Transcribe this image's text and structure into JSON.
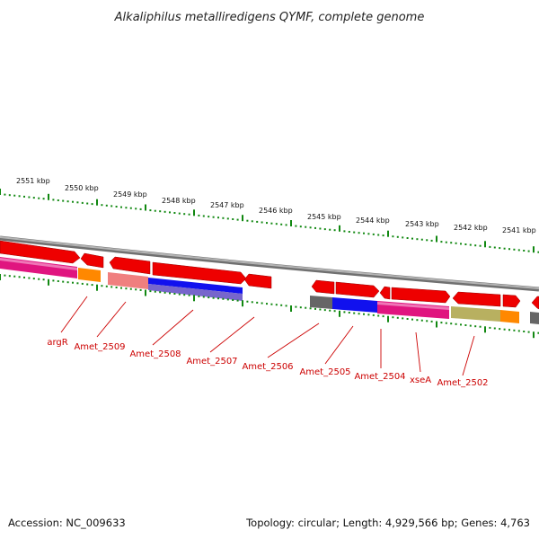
{
  "title": "Alkaliphilus metalliredigens QYMF, complete genome",
  "footer": {
    "accession": "Accession: NC_009633",
    "topology": "Topology: circular; Length: 4,929,566 bp; Genes: 4,763"
  },
  "colors": {
    "gene_arrow": "#ee0000",
    "ruler_tick": "#118811",
    "backbone": "#8a8a8a",
    "label": "#cc0000",
    "cog_pink": "#e0157f",
    "cog_orange": "#ff8800",
    "cog_salmon": "#f07f7f",
    "cog_blue": "#1111ee",
    "cog_purple": "#7766cc",
    "cog_gray": "#666666",
    "cog_khaki": "#b8b060"
  },
  "kbp_marks": [
    {
      "text": "2551 kbp"
    },
    {
      "text": "2550 kbp"
    },
    {
      "text": "2549 kbp"
    },
    {
      "text": "2548 kbp"
    },
    {
      "text": "2547 kbp"
    },
    {
      "text": "2546 kbp"
    },
    {
      "text": "2545 kbp"
    },
    {
      "text": "2544 kbp"
    },
    {
      "text": "2543 kbp"
    },
    {
      "text": "2542 kbp"
    },
    {
      "text": "2541 kbp"
    }
  ],
  "gene_labels": [
    {
      "text": "argR"
    },
    {
      "text": "Amet_2509"
    },
    {
      "text": "Amet_2508"
    },
    {
      "text": "Amet_2507"
    },
    {
      "text": "Amet_2506"
    },
    {
      "text": "Amet_2505"
    },
    {
      "text": "Amet_2504"
    },
    {
      "text": "xseA"
    },
    {
      "text": "Amet_2502"
    }
  ]
}
